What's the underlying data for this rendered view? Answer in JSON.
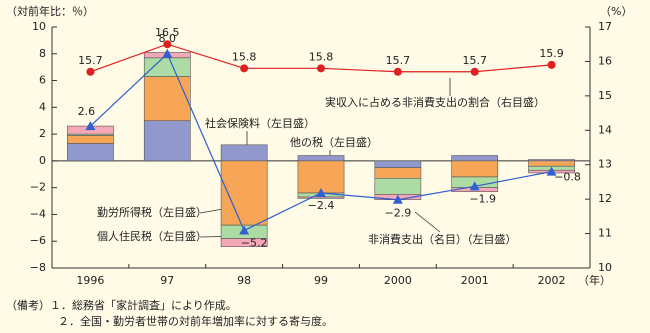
{
  "chart_data": {
    "type": "bar",
    "categories": [
      "1996",
      "97",
      "98",
      "99",
      "2000",
      "2001",
      "2002"
    ],
    "x_unit": "（年）",
    "y_unit": "（対前年比：％）",
    "y2_unit": "（%）",
    "ylim": [
      -8,
      10
    ],
    "yticks": [
      {
        "value": -8,
        "label": "−8"
      },
      {
        "value": -6,
        "label": "−6"
      },
      {
        "value": -4,
        "label": "−4"
      },
      {
        "value": -2,
        "label": "−2"
      },
      0,
      2,
      4,
      6,
      8,
      10
    ],
    "y2lim": [
      10,
      17
    ],
    "y2ticks": [
      10,
      11,
      12,
      13,
      14,
      15,
      16,
      17
    ],
    "series": [
      {
        "name": "社会保険料（左目盛）",
        "color": "#9098cc",
        "values": [
          1.3,
          3.0,
          1.2,
          0.4,
          -0.5,
          0.4,
          0.1
        ]
      },
      {
        "name": "勤労所得税（左目盛）",
        "color": "#f7a557",
        "values": [
          0.6,
          3.3,
          -4.8,
          -2.4,
          -0.8,
          -1.2,
          -0.4
        ]
      },
      {
        "name": "個人住民税（左目盛）",
        "color": "#acdca4",
        "values": [
          0.1,
          1.4,
          -1.0,
          -0.3,
          -1.2,
          -0.8,
          -0.3
        ]
      },
      {
        "name": "他の税（左目盛）",
        "color": "#f4a8b8",
        "values": [
          0.6,
          0.4,
          -0.6,
          -0.1,
          -0.4,
          -0.3,
          -0.2
        ]
      },
      {
        "name": "非消費支出（名目）（左目盛）",
        "type": "line",
        "color": "#2f5fd0",
        "values": [
          2.6,
          8.0,
          -5.2,
          -2.4,
          -2.9,
          -1.9,
          -0.8
        ],
        "value_labels": [
          "2.6",
          "8.0",
          "−5.2",
          "−2.4",
          "−2.9",
          "−1.9",
          "−0.8"
        ]
      },
      {
        "name": "実収入に占める非消費支出の割合（右目盛）",
        "type": "line",
        "axis": "y2",
        "color": "#e02020",
        "values": [
          15.7,
          16.5,
          15.8,
          15.8,
          15.7,
          15.7,
          15.9
        ]
      }
    ],
    "notes": [
      "（備考）１．総務省「家計調査」により作成。",
      "２．全国・勤労者世帯の対前年増加率に対する寄与度。"
    ]
  }
}
